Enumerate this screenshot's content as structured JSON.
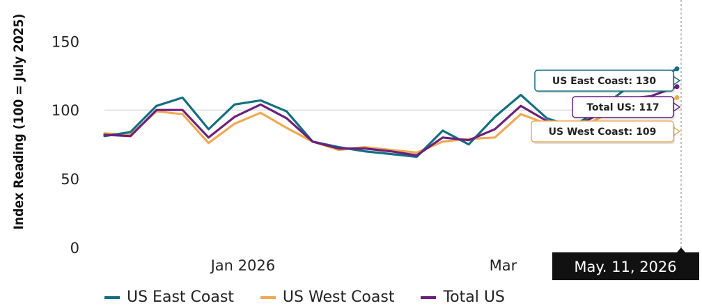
{
  "chart_data": {
    "type": "line",
    "ylabel": "Index Reading (100 = July 2025)",
    "ylim": [
      0,
      180
    ],
    "yticks": [
      0,
      50,
      100,
      150
    ],
    "xtick_labels": [
      {
        "label": "Jan 2026",
        "index": 5
      },
      {
        "label": "Mar",
        "index": 15
      }
    ],
    "x_count": 23,
    "hover_date": "May. 11, 2026",
    "series": [
      {
        "name": "US East Coast",
        "color": "#136f80",
        "values": [
          81,
          84,
          103,
          109,
          86,
          104,
          107,
          99,
          77,
          73,
          70,
          68,
          66,
          85,
          75,
          95,
          111,
          94,
          88,
          100,
          115,
          120,
          130
        ],
        "callout": "US East Coast: 130"
      },
      {
        "name": "US West Coast",
        "color": "#f0a951",
        "values": [
          83,
          82,
          99,
          97,
          76,
          90,
          98,
          87,
          77,
          71,
          73,
          71,
          69,
          77,
          79,
          80,
          97,
          90,
          84,
          94,
          103,
          100,
          109
        ],
        "callout": "US West Coast: 109"
      },
      {
        "name": "Total US",
        "color": "#6c1f7d",
        "values": [
          82,
          81,
          100,
          100,
          80,
          95,
          104,
          94,
          77,
          72,
          72,
          70,
          67,
          80,
          78,
          86,
          103,
          92,
          87,
          97,
          108,
          110,
          117
        ],
        "callout": "Total US: 117"
      }
    ]
  }
}
